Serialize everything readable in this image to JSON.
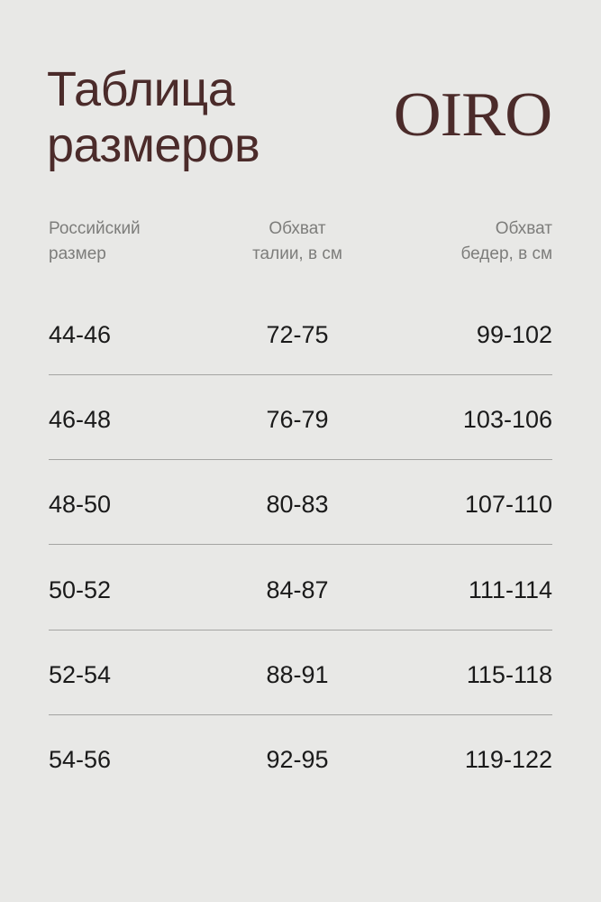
{
  "title": [
    "Таблица",
    "размеров"
  ],
  "logo": "OIRO",
  "headers": [
    {
      "line1": "Российский",
      "line2": "размер"
    },
    {
      "line1": "Обхват",
      "line2": "талии, в см"
    },
    {
      "line1": "Обхват",
      "line2": "бедер, в см"
    }
  ],
  "rows": [
    [
      "44-46",
      "72-75",
      "99-102"
    ],
    [
      "46-48",
      "76-79",
      "103-106"
    ],
    [
      "48-50",
      "80-83",
      "107-110"
    ],
    [
      "50-52",
      "84-87",
      "111-114"
    ],
    [
      "52-54",
      "88-91",
      "115-118"
    ],
    [
      "54-56",
      "92-95",
      "119-122"
    ]
  ],
  "colors": {
    "accent": "#4b2b2a",
    "background": "#e8e8e6"
  }
}
